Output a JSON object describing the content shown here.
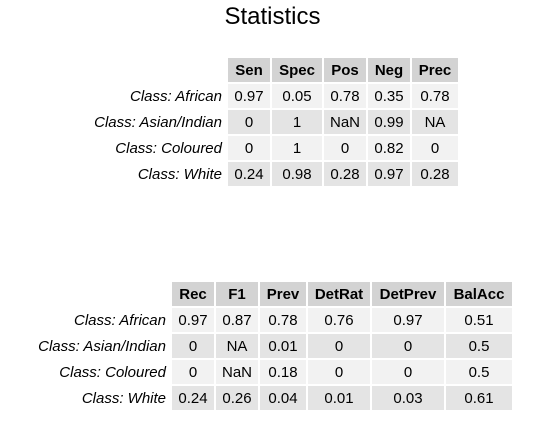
{
  "title": "Statistics",
  "table1": {
    "columns": [
      "Sen",
      "Spec",
      "Pos",
      "Neg",
      "Prec"
    ],
    "rows": [
      {
        "label": "Class: African",
        "values": [
          "0.97",
          "0.05",
          "0.78",
          "0.35",
          "0.78"
        ]
      },
      {
        "label": "Class: Asian/Indian",
        "values": [
          "0",
          "1",
          "NaN",
          "0.99",
          "NA"
        ]
      },
      {
        "label": "Class: Coloured",
        "values": [
          "0",
          "1",
          "0",
          "0.82",
          "0"
        ]
      },
      {
        "label": "Class: White",
        "values": [
          "0.24",
          "0.98",
          "0.28",
          "0.97",
          "0.28"
        ]
      }
    ]
  },
  "table2": {
    "columns": [
      "Rec",
      "F1",
      "Prev",
      "DetRat",
      "DetPrev",
      "BalAcc"
    ],
    "rows": [
      {
        "label": "Class: African",
        "values": [
          "0.97",
          "0.87",
          "0.78",
          "0.76",
          "0.97",
          "0.51"
        ]
      },
      {
        "label": "Class: Asian/Indian",
        "values": [
          "0",
          "NA",
          "0.01",
          "0",
          "0",
          "0.5"
        ]
      },
      {
        "label": "Class: Coloured",
        "values": [
          "0",
          "NaN",
          "0.18",
          "0",
          "0",
          "0.5"
        ]
      },
      {
        "label": "Class: White",
        "values": [
          "0.24",
          "0.26",
          "0.04",
          "0.01",
          "0.03",
          "0.61"
        ]
      }
    ]
  }
}
